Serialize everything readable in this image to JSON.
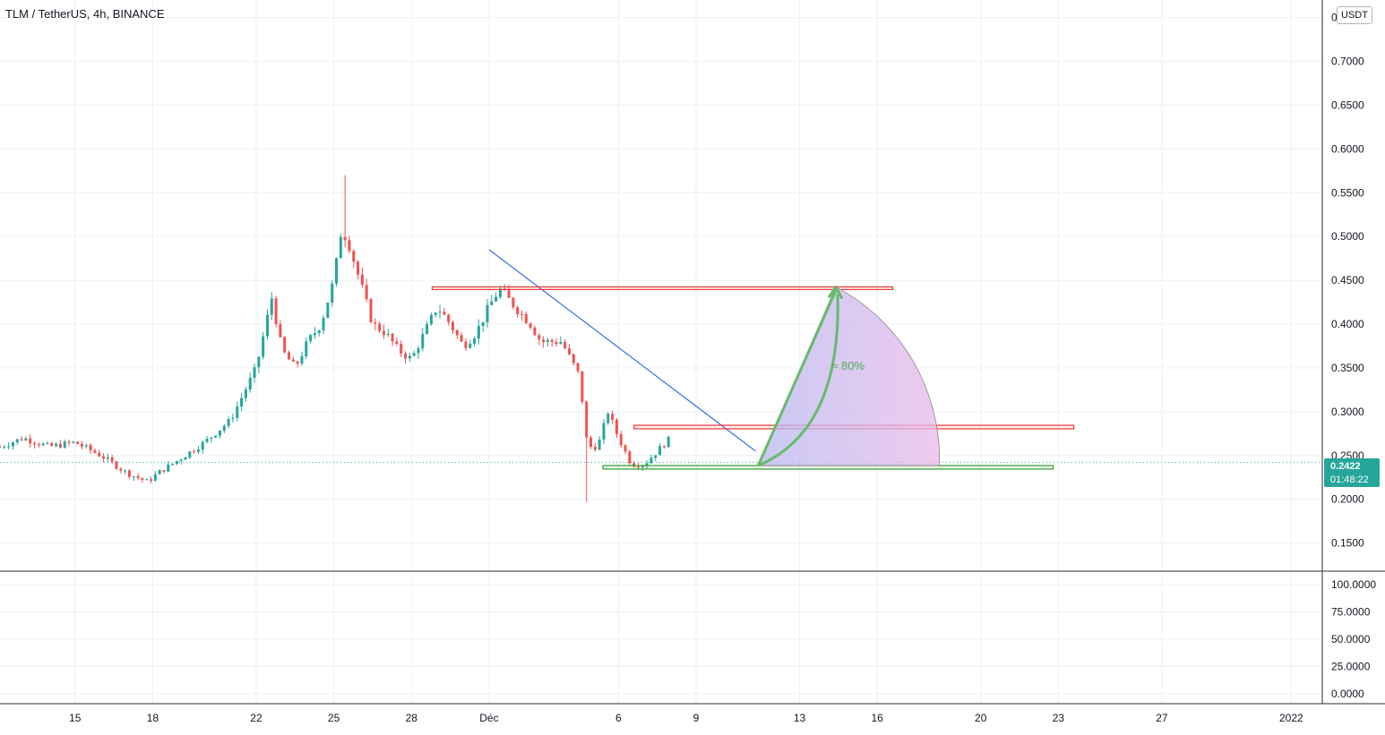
{
  "header": {
    "title": "TLM / TetherUS, 4h, BINANCE",
    "currency_button": "USDT"
  },
  "price_tag": {
    "price": "0.2422",
    "countdown": "01:48:22"
  },
  "colors": {
    "up": "#26a69a",
    "down": "#ef5350",
    "trendline": "#3d6ef0",
    "support": "#2e9e2e",
    "resistance": "#e53935",
    "arrow": "#66bb6a",
    "grid": "#eef0f3",
    "axis_text": "#131722"
  },
  "chart_data": {
    "type": "candlestick",
    "title": "TLM / TetherUS, 4h, BINANCE",
    "y_axis": {
      "ticks": [
        "0.7500",
        "0.7000",
        "0.6500",
        "0.6000",
        "0.5500",
        "0.5000",
        "0.4500",
        "0.4000",
        "0.3500",
        "0.3000",
        "0.2500",
        "0.2000",
        "0.1500"
      ],
      "range": [
        0.12,
        0.77
      ]
    },
    "x_axis": {
      "ticks": [
        "15",
        "18",
        "22",
        "25",
        "28",
        "Déc",
        "6",
        "9",
        "13",
        "16",
        "20",
        "23",
        "27",
        "2022"
      ],
      "tick_days": [
        0,
        3,
        7,
        10,
        13,
        16,
        21,
        24,
        28,
        31,
        35,
        38,
        42,
        47
      ],
      "range_days": [
        -2.9,
        48.2
      ]
    },
    "series": {
      "candle_days": [
        -2.9,
        12.3,
        23.1
      ],
      "candle_keyframes": [
        [
          -2.9,
          0.26
        ],
        [
          -2.0,
          0.27
        ],
        [
          -1.0,
          0.26
        ],
        [
          0.0,
          0.265
        ],
        [
          1.0,
          0.25
        ],
        [
          2.0,
          0.23
        ],
        [
          2.8,
          0.22
        ],
        [
          3.2,
          0.23
        ],
        [
          4.0,
          0.245
        ],
        [
          5.0,
          0.265
        ],
        [
          6.0,
          0.29
        ],
        [
          7.0,
          0.35
        ],
        [
          7.6,
          0.43
        ],
        [
          8.0,
          0.37
        ],
        [
          8.5,
          0.35
        ],
        [
          9.0,
          0.38
        ],
        [
          9.5,
          0.4
        ],
        [
          10.0,
          0.45
        ],
        [
          10.3,
          0.51
        ],
        [
          10.6,
          0.49
        ],
        [
          11.0,
          0.45
        ],
        [
          11.5,
          0.4
        ],
        [
          12.0,
          0.39
        ],
        [
          12.5,
          0.37
        ],
        [
          13.0,
          0.36
        ],
        [
          13.5,
          0.39
        ],
        [
          14.0,
          0.42
        ],
        [
          14.5,
          0.4
        ],
        [
          15.0,
          0.375
        ],
        [
          15.5,
          0.39
        ],
        [
          16.0,
          0.42
        ],
        [
          16.4,
          0.44
        ],
        [
          17.0,
          0.42
        ],
        [
          17.6,
          0.4
        ],
        [
          18.0,
          0.38
        ],
        [
          18.8,
          0.38
        ],
        [
          19.5,
          0.34
        ],
        [
          19.8,
          0.26
        ],
        [
          20.2,
          0.26
        ],
        [
          20.6,
          0.3
        ],
        [
          21.0,
          0.27
        ],
        [
          21.5,
          0.24
        ],
        [
          22.0,
          0.24
        ],
        [
          22.5,
          0.255
        ],
        [
          23.0,
          0.27
        ],
        [
          23.5,
          0.26
        ],
        [
          24.0,
          0.245
        ],
        [
          24.5,
          0.27
        ],
        [
          25.0,
          0.26
        ],
        [
          25.5,
          0.25
        ],
        [
          26.0,
          0.245
        ],
        [
          26.3,
          0.2422
        ]
      ],
      "volume_ticks": [
        "100.0000",
        "75.0000",
        "50.0000",
        "25.0000",
        "0.0000"
      ]
    },
    "annotations": {
      "trendline": {
        "from": [
          16.0,
          0.485
        ],
        "to": [
          26.3,
          0.255
        ]
      },
      "resistance_top": {
        "x": [
          13.8,
          31.6
        ],
        "y": [
          0.4395,
          0.4425
        ]
      },
      "resistance_mid": {
        "x": [
          21.6,
          38.6
        ],
        "y": [
          0.2805,
          0.2845
        ]
      },
      "support": {
        "x": [
          20.4,
          37.8
        ],
        "y": [
          0.2345,
          0.2385
        ]
      },
      "target_arc": {
        "center": [
          26.4,
          0.2385
        ],
        "end": [
          29.4,
          0.4425
        ],
        "right": [
          33.4,
          0.2385
        ]
      },
      "move_label": "≈  80%"
    }
  }
}
